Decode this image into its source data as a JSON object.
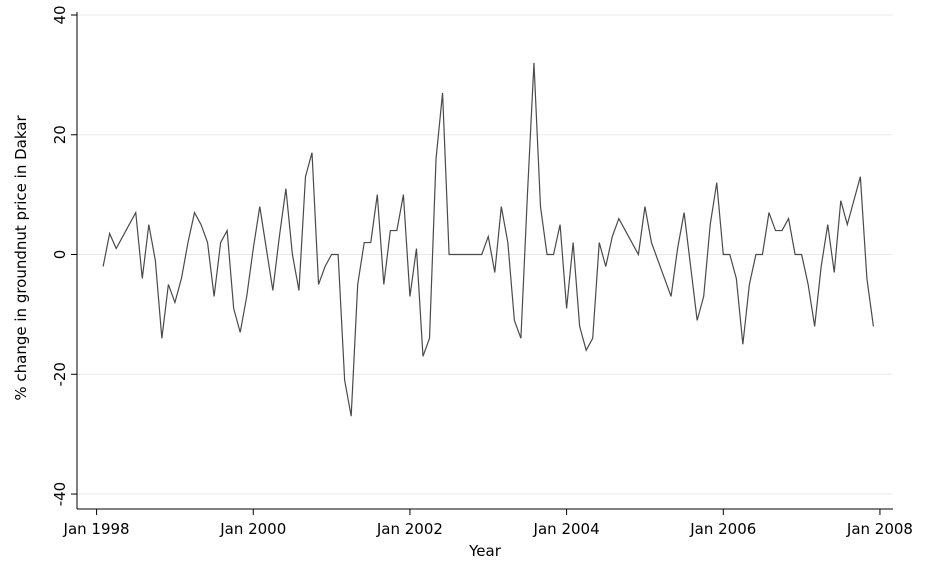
{
  "chart_data": {
    "type": "line",
    "x_label": "Year",
    "y_label": "% change in groundnut price in Dakar",
    "x": [
      "1998-02",
      "1998-03",
      "1998-04",
      "1998-05",
      "1998-06",
      "1998-07",
      "1998-08",
      "1998-09",
      "1998-10",
      "1998-11",
      "1998-12",
      "1999-01",
      "1999-02",
      "1999-03",
      "1999-04",
      "1999-05",
      "1999-06",
      "1999-07",
      "1999-08",
      "1999-09",
      "1999-10",
      "1999-11",
      "1999-12",
      "2000-01",
      "2000-02",
      "2000-03",
      "2000-04",
      "2000-05",
      "2000-06",
      "2000-07",
      "2000-08",
      "2000-09",
      "2000-10",
      "2000-11",
      "2000-12",
      "2001-01",
      "2001-02",
      "2001-03",
      "2001-04",
      "2001-05",
      "2001-06",
      "2001-07",
      "2001-08",
      "2001-09",
      "2001-10",
      "2001-11",
      "2001-12",
      "2002-01",
      "2002-02",
      "2002-03",
      "2002-04",
      "2002-05",
      "2002-06",
      "2002-07",
      "2002-08",
      "2002-09",
      "2002-10",
      "2002-11",
      "2002-12",
      "2003-01",
      "2003-02",
      "2003-03",
      "2003-04",
      "2003-05",
      "2003-06",
      "2003-07",
      "2003-08",
      "2003-09",
      "2003-10",
      "2003-11",
      "2003-12",
      "2004-01",
      "2004-02",
      "2004-03",
      "2004-04",
      "2004-05",
      "2004-06",
      "2004-07",
      "2004-08",
      "2004-09",
      "2004-10",
      "2004-11",
      "2004-12",
      "2005-01",
      "2005-02",
      "2005-03",
      "2005-04",
      "2005-05",
      "2005-06",
      "2005-07",
      "2005-08",
      "2005-09",
      "2005-10",
      "2005-11",
      "2005-12",
      "2006-01",
      "2006-02",
      "2006-03",
      "2006-04",
      "2006-05",
      "2006-06",
      "2006-07",
      "2006-08",
      "2006-09",
      "2006-10",
      "2006-11",
      "2006-12",
      "2007-01",
      "2007-02",
      "2007-03",
      "2007-04",
      "2007-05",
      "2007-06",
      "2007-07",
      "2007-08",
      "2007-09",
      "2007-10",
      "2007-11",
      "2007-12"
    ],
    "series": [
      {
        "name": "% change",
        "color": "#4a4a4a",
        "values": [
          -2,
          3.5,
          1,
          3,
          5,
          7,
          -4,
          5,
          -1,
          -14,
          -5,
          -8,
          -4,
          2,
          7,
          5,
          2,
          -7,
          2,
          4,
          -9,
          -13,
          -7,
          1,
          8,
          1,
          -6,
          3,
          11,
          0,
          -6,
          13,
          17,
          -5,
          -2,
          0,
          0,
          -21,
          -27,
          -5,
          2,
          2,
          10,
          -5,
          4,
          4,
          10,
          -7,
          1,
          -17,
          -14,
          16,
          27,
          0,
          0,
          0,
          0,
          0,
          0,
          3,
          -3,
          8,
          2,
          -11,
          -14,
          10,
          32,
          8,
          0,
          0,
          5,
          -9,
          2,
          -12,
          -16,
          -14,
          2,
          -2,
          3,
          6,
          4,
          2,
          0,
          8,
          2,
          -1,
          -4,
          -7,
          1,
          7,
          -2,
          -11,
          -7,
          5,
          12,
          0,
          0,
          -4,
          -15,
          -5,
          0,
          0,
          7,
          4,
          4,
          6,
          0,
          0,
          -5,
          -12,
          -2,
          5,
          -3,
          9,
          5,
          9,
          13,
          -4,
          -12
        ]
      }
    ],
    "xlim": [
      "1997-10",
      "2008-03"
    ],
    "xticks": [
      {
        "value": "1998-01",
        "label": "Jan 1998"
      },
      {
        "value": "2000-01",
        "label": "Jan 2000"
      },
      {
        "value": "2002-01",
        "label": "Jan 2002"
      },
      {
        "value": "2004-01",
        "label": "Jan 2004"
      },
      {
        "value": "2006-01",
        "label": "Jan 2006"
      },
      {
        "value": "2008-01",
        "label": "Jan 2008"
      }
    ],
    "ylim": [
      -42.5,
      40.5
    ],
    "yticks": [
      -40,
      -20,
      0,
      20,
      40
    ],
    "grid": true
  }
}
